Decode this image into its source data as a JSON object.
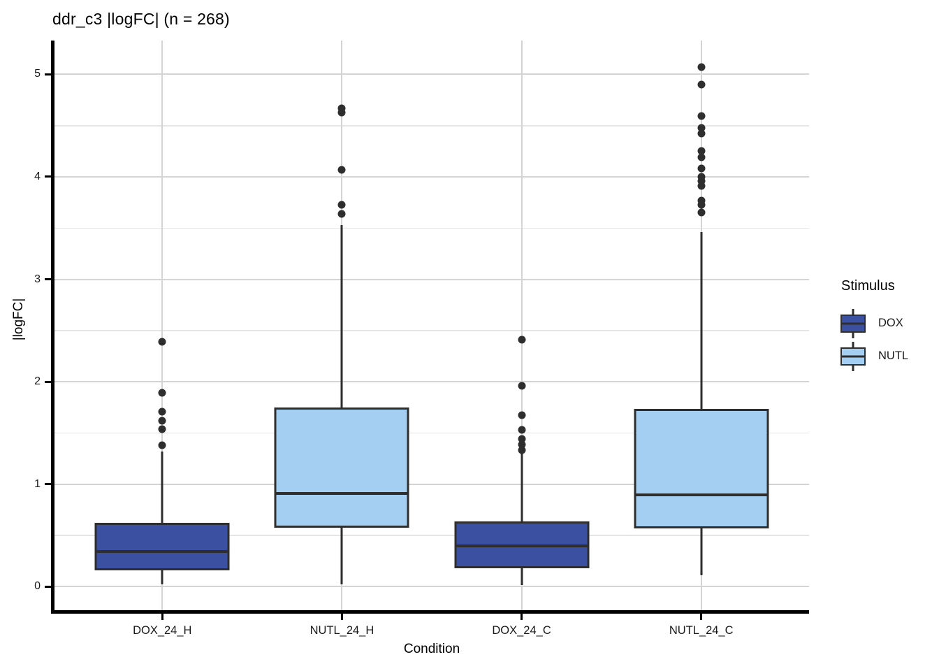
{
  "chart_data": {
    "type": "box",
    "title": "ddr_c3 |logFC| (n = 268)",
    "xlabel": "Condition",
    "ylabel": "|logFC|",
    "categories": [
      "DOX_24_H",
      "NUTL_24_H",
      "DOX_24_C",
      "NUTL_24_C"
    ],
    "yticks": [
      0,
      1,
      2,
      3,
      4,
      5
    ],
    "yminor": [
      0.5,
      1.5,
      2.5,
      3.5,
      4.5
    ],
    "ylim": [
      -0.23,
      5.33
    ],
    "grid": "on",
    "legend": {
      "title": "Stimulus",
      "position": "right",
      "entries": [
        {
          "label": "DOX",
          "color": "#3C50A2"
        },
        {
          "label": "NUTL",
          "color": "#A4CFF3"
        }
      ]
    },
    "boxes": [
      {
        "category": "DOX_24_H",
        "stimulus": "DOX",
        "whisker_low": 0.02,
        "q1": 0.16,
        "median": 0.345,
        "q3": 0.625,
        "whisker_high": 1.32,
        "outliers": [
          1.38,
          1.54,
          1.62,
          1.71,
          1.89,
          2.39
        ]
      },
      {
        "category": "NUTL_24_H",
        "stimulus": "NUTL",
        "whisker_low": 0.02,
        "q1": 0.575,
        "median": 0.91,
        "q3": 1.75,
        "whisker_high": 3.53,
        "outliers": [
          3.64,
          3.73,
          4.07,
          4.63,
          4.67
        ]
      },
      {
        "category": "DOX_24_C",
        "stimulus": "DOX",
        "whisker_low": 0.015,
        "q1": 0.18,
        "median": 0.4,
        "q3": 0.635,
        "whisker_high": 1.31,
        "outliers": [
          1.33,
          1.39,
          1.44,
          1.53,
          1.67,
          1.96,
          2.41
        ]
      },
      {
        "category": "NUTL_24_C",
        "stimulus": "NUTL",
        "whisker_low": 0.11,
        "q1": 0.57,
        "median": 0.895,
        "q3": 1.735,
        "whisker_high": 3.46,
        "outliers": [
          3.65,
          3.73,
          3.77,
          3.91,
          3.96,
          4.0,
          4.08,
          4.19,
          4.25,
          4.42,
          4.48,
          4.59,
          4.9,
          5.07
        ]
      }
    ],
    "colors": {
      "DOX": "#3C50A2",
      "NUTL": "#A4CFF3",
      "stroke": "#2E2E2E",
      "grid_major": "#D4D4D4",
      "grid_minor": "#E5E5E5",
      "axis": "#000000"
    }
  }
}
